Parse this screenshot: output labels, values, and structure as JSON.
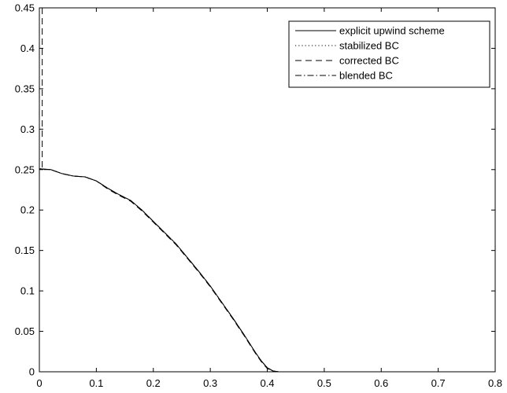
{
  "chart_data": {
    "type": "line",
    "title": "",
    "xlabel": "",
    "ylabel": "",
    "xlim": [
      0,
      0.8
    ],
    "ylim": [
      0,
      0.45
    ],
    "x_ticks": [
      "0",
      "0.1",
      "0.2",
      "0.3",
      "0.4",
      "0.5",
      "0.6",
      "0.7",
      "0.8"
    ],
    "y_ticks": [
      "0",
      "0.05",
      "0.1",
      "0.15",
      "0.2",
      "0.25",
      "0.3",
      "0.35",
      "0.4",
      "0.45"
    ],
    "grid": false,
    "legend_position": "top-right",
    "series": [
      {
        "name": "explicit upwind scheme",
        "style": "solid",
        "color": "#000000",
        "x": [
          0,
          0.02,
          0.04,
          0.06,
          0.08,
          0.1,
          0.12,
          0.14,
          0.16,
          0.18,
          0.2,
          0.22,
          0.24,
          0.26,
          0.28,
          0.3,
          0.32,
          0.34,
          0.36,
          0.38,
          0.39,
          0.4,
          0.41,
          0.42,
          0.43,
          0.45,
          0.5,
          0.6,
          0.7,
          0.8
        ],
        "y": [
          0.251,
          0.25,
          0.245,
          0.242,
          0.241,
          0.236,
          0.227,
          0.219,
          0.212,
          0.2,
          0.186,
          0.172,
          0.158,
          0.141,
          0.124,
          0.106,
          0.086,
          0.066,
          0.045,
          0.023,
          0.013,
          0.005,
          0.001,
          0,
          0,
          0,
          0,
          0,
          0,
          0
        ]
      },
      {
        "name": "stabilized BC",
        "style": "dotted",
        "color": "#000000",
        "x": [
          0,
          0.02,
          0.04,
          0.06,
          0.08,
          0.1,
          0.12,
          0.14,
          0.16,
          0.18,
          0.2,
          0.22,
          0.24,
          0.26,
          0.28,
          0.3,
          0.32,
          0.34,
          0.36,
          0.38,
          0.39,
          0.4,
          0.41,
          0.42,
          0.43,
          0.45,
          0.5,
          0.6,
          0.7,
          0.8
        ],
        "y": [
          0.251,
          0.25,
          0.245,
          0.242,
          0.241,
          0.236,
          0.227,
          0.219,
          0.212,
          0.2,
          0.186,
          0.172,
          0.158,
          0.141,
          0.124,
          0.106,
          0.086,
          0.066,
          0.045,
          0.023,
          0.013,
          0.005,
          0.001,
          0,
          0,
          0,
          0,
          0,
          0,
          0
        ]
      },
      {
        "name": "corrected BC",
        "style": "dashed",
        "color": "#000000",
        "x": [
          0.005,
          0.005,
          0.005,
          0.02,
          0.04,
          0.06,
          0.08,
          0.1,
          0.12,
          0.14,
          0.16,
          0.18,
          0.2,
          0.22,
          0.24,
          0.26,
          0.28,
          0.3,
          0.32,
          0.34,
          0.36,
          0.38,
          0.39,
          0.4,
          0.41,
          0.42,
          0.43,
          0.45,
          0.5,
          0.6,
          0.7,
          0.8
        ],
        "y": [
          0.45,
          0.25,
          0.25,
          0.25,
          0.245,
          0.242,
          0.241,
          0.236,
          0.226,
          0.218,
          0.211,
          0.199,
          0.185,
          0.171,
          0.157,
          0.14,
          0.123,
          0.105,
          0.085,
          0.065,
          0.044,
          0.022,
          0.012,
          0.004,
          0.001,
          0,
          0,
          0,
          0,
          0,
          0,
          0
        ]
      },
      {
        "name": "blended BC",
        "style": "dashdot",
        "color": "#000000",
        "x": [
          0,
          0.02,
          0.04,
          0.06,
          0.08,
          0.1,
          0.12,
          0.14,
          0.16,
          0.18,
          0.2,
          0.22,
          0.24,
          0.26,
          0.28,
          0.3,
          0.32,
          0.34,
          0.36,
          0.38,
          0.39,
          0.4,
          0.41,
          0.42,
          0.43,
          0.45,
          0.5,
          0.6,
          0.7,
          0.8
        ],
        "y": [
          0.251,
          0.25,
          0.245,
          0.242,
          0.241,
          0.236,
          0.227,
          0.219,
          0.212,
          0.2,
          0.186,
          0.172,
          0.158,
          0.141,
          0.124,
          0.106,
          0.086,
          0.066,
          0.045,
          0.023,
          0.013,
          0.005,
          0.001,
          0,
          0,
          0,
          0,
          0,
          0,
          0
        ]
      }
    ]
  }
}
